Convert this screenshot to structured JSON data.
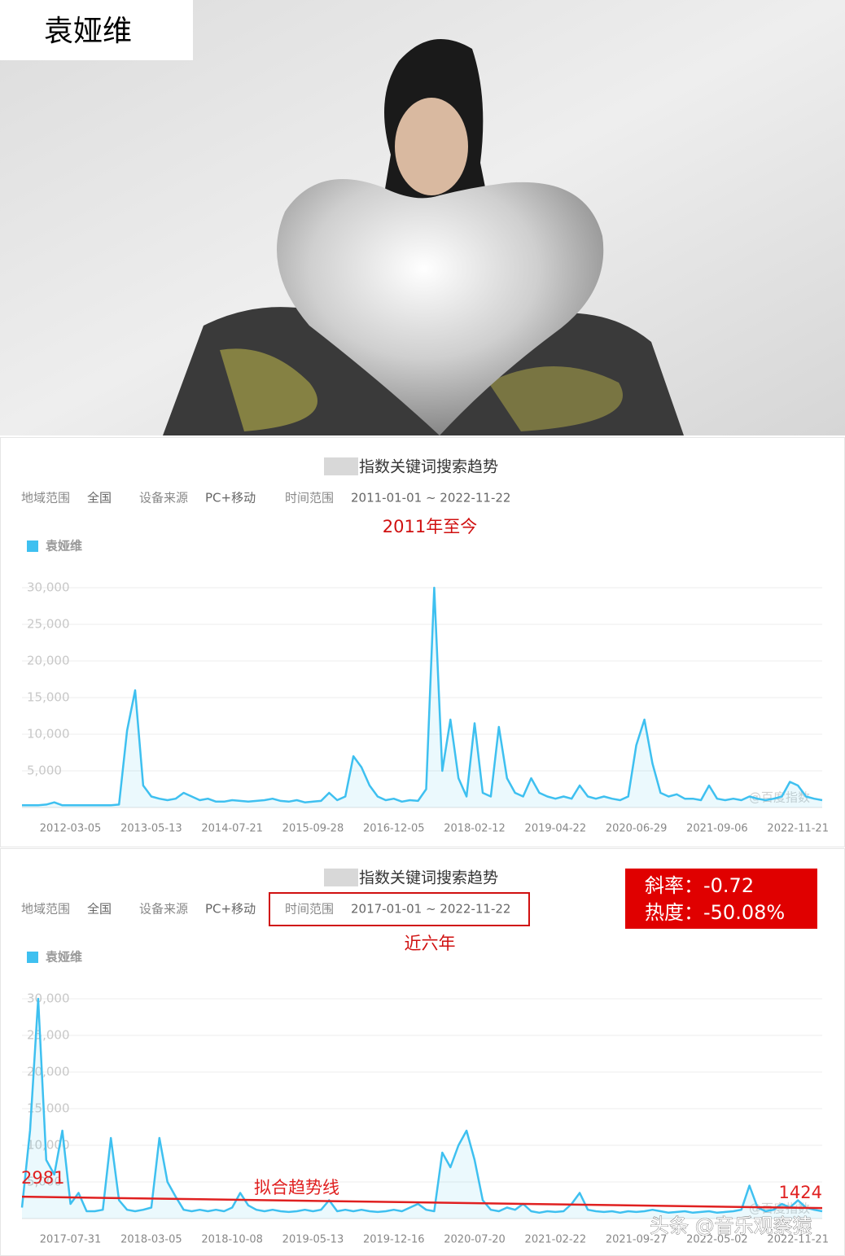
{
  "header": {
    "name": "袁娅维"
  },
  "watermark": "头条 @音乐观察猿",
  "chart_data": [
    {
      "type": "line",
      "title": "指数关键词搜索趋势",
      "filters": [
        {
          "label": "地域范围",
          "value": "全国"
        },
        {
          "label": "设备来源",
          "value": "PC+移动"
        },
        {
          "label": "时间范围",
          "value": "2011-01-01 ~ 2022-11-22"
        }
      ],
      "annotation": "2011年至今",
      "watermark": "@百度指数",
      "categories": [
        null,
        null,
        null,
        null,
        null,
        null,
        "2012-03-05",
        null,
        null,
        null,
        null,
        null,
        null,
        null,
        null,
        null,
        "2013-05-13",
        null,
        null,
        null,
        null,
        null,
        null,
        null,
        null,
        null,
        "2014-07-21",
        null,
        null,
        null,
        null,
        null,
        null,
        null,
        null,
        null,
        "2015-09-28",
        null,
        null,
        null,
        null,
        null,
        null,
        null,
        null,
        null,
        "2016-12-05",
        null,
        null,
        null,
        null,
        null,
        null,
        null,
        null,
        null,
        "2018-02-12",
        null,
        null,
        null,
        null,
        null,
        null,
        null,
        null,
        null,
        "2019-04-22",
        null,
        null,
        null,
        null,
        null,
        null,
        null,
        null,
        null,
        "2020-06-29",
        null,
        null,
        null,
        null,
        null,
        null,
        null,
        null,
        null,
        "2021-09-06",
        null,
        null,
        null,
        null,
        null,
        null,
        null,
        null,
        null,
        "2022-11-21",
        null,
        null,
        null
      ],
      "series": [
        {
          "name": "袁娅维",
          "color": "#3ec0f0",
          "values": [
            300,
            300,
            300,
            400,
            700,
            300,
            300,
            300,
            300,
            300,
            300,
            300,
            400,
            10500,
            16000,
            3000,
            1500,
            1200,
            1000,
            1200,
            2000,
            1500,
            1000,
            1200,
            800,
            800,
            1000,
            900,
            800,
            900,
            1000,
            1200,
            900,
            800,
            1000,
            700,
            800,
            900,
            2000,
            1000,
            1500,
            7000,
            5500,
            3000,
            1500,
            1000,
            1200,
            800,
            1000,
            900,
            2500,
            30000,
            5000,
            12000,
            4000,
            1500,
            11500,
            2000,
            1500,
            11000,
            4000,
            2000,
            1500,
            4000,
            2000,
            1500,
            1200,
            1500,
            1200,
            3000,
            1500,
            1200,
            1500,
            1200,
            1000,
            1500,
            8500,
            12000,
            6000,
            2000,
            1500,
            1800,
            1200,
            1200,
            1000,
            3000,
            1200,
            1000,
            1200,
            1000,
            1500,
            1200,
            1000,
            1200,
            1500,
            3500,
            3000,
            1500,
            1200,
            1000
          ]
        }
      ],
      "ylim": [
        0,
        30000
      ],
      "yticks": [
        {
          "value": 5000,
          "label": "5,000"
        },
        {
          "value": 10000,
          "label": "10,000"
        },
        {
          "value": 15000,
          "label": "15,000"
        },
        {
          "value": 20000,
          "label": "20,000"
        },
        {
          "value": 25000,
          "label": "25,000"
        },
        {
          "value": 30000,
          "label": "30,000"
        }
      ],
      "grid": true
    },
    {
      "type": "line",
      "title": "指数关键词搜索趋势",
      "filters": [
        {
          "label": "地域范围",
          "value": "全国"
        },
        {
          "label": "设备来源",
          "value": "PC+移动"
        },
        {
          "label": "时间范围",
          "value": "2017-01-01 ~ 2022-11-22"
        }
      ],
      "annotation": "近六年",
      "watermark": "@百度指数",
      "stats": [
        "斜率：-0.72",
        "热度：-50.08%"
      ],
      "categories": [
        null,
        null,
        null,
        null,
        null,
        null,
        "2017-07-31",
        null,
        null,
        null,
        null,
        null,
        null,
        null,
        null,
        null,
        "2018-03-05",
        null,
        null,
        null,
        null,
        null,
        null,
        null,
        null,
        null,
        "2018-10-08",
        null,
        null,
        null,
        null,
        null,
        null,
        null,
        null,
        null,
        "2019-05-13",
        null,
        null,
        null,
        null,
        null,
        null,
        null,
        null,
        null,
        "2019-12-16",
        null,
        null,
        null,
        null,
        null,
        null,
        null,
        null,
        null,
        "2020-07-20",
        null,
        null,
        null,
        null,
        null,
        null,
        null,
        null,
        null,
        "2021-02-22",
        null,
        null,
        null,
        null,
        null,
        null,
        null,
        null,
        null,
        "2021-09-27",
        null,
        null,
        null,
        null,
        null,
        null,
        null,
        null,
        null,
        "2022-05-02",
        null,
        null,
        null,
        null,
        null,
        null,
        null,
        null,
        null,
        "2022-11-21",
        null,
        null,
        null
      ],
      "series": [
        {
          "name": "袁娅维",
          "color": "#3ec0f0",
          "values": [
            1500,
            12000,
            30000,
            8000,
            6000,
            12000,
            2000,
            3500,
            1000,
            1000,
            1200,
            11000,
            2500,
            1200,
            1000,
            1200,
            1500,
            11000,
            5000,
            3000,
            1200,
            1000,
            1200,
            1000,
            1200,
            1000,
            1500,
            3500,
            1800,
            1200,
            1000,
            1200,
            1000,
            900,
            1000,
            1200,
            1000,
            1200,
            2500,
            1000,
            1200,
            1000,
            1200,
            1000,
            900,
            1000,
            1200,
            1000,
            1500,
            2000,
            1200,
            1000,
            9000,
            7000,
            10000,
            12000,
            8000,
            2500,
            1200,
            1000,
            1500,
            1200,
            2000,
            1000,
            800,
            1000,
            900,
            1000,
            2000,
            3500,
            1200,
            1000,
            900,
            1000,
            800,
            1000,
            900,
            1000,
            1200,
            1000,
            800,
            900,
            1000,
            800,
            900,
            1000,
            800,
            900,
            1000,
            1200,
            4500,
            1500,
            1000,
            1200,
            2000,
            1500,
            2500,
            1500,
            1200,
            1000
          ]
        }
      ],
      "trend": {
        "name": "拟合趋势线",
        "color": "#e02020",
        "values": [
          2981,
          1424
        ]
      },
      "ylim": [
        0,
        30000
      ],
      "yticks": [
        {
          "value": 5000,
          "label": "5,000"
        },
        {
          "value": 10000,
          "label": "10,000"
        },
        {
          "value": 15000,
          "label": "15,000"
        },
        {
          "value": 20000,
          "label": "20,000"
        },
        {
          "value": 25000,
          "label": "25,000"
        },
        {
          "value": 30000,
          "label": "30,000"
        }
      ],
      "grid": true
    }
  ]
}
